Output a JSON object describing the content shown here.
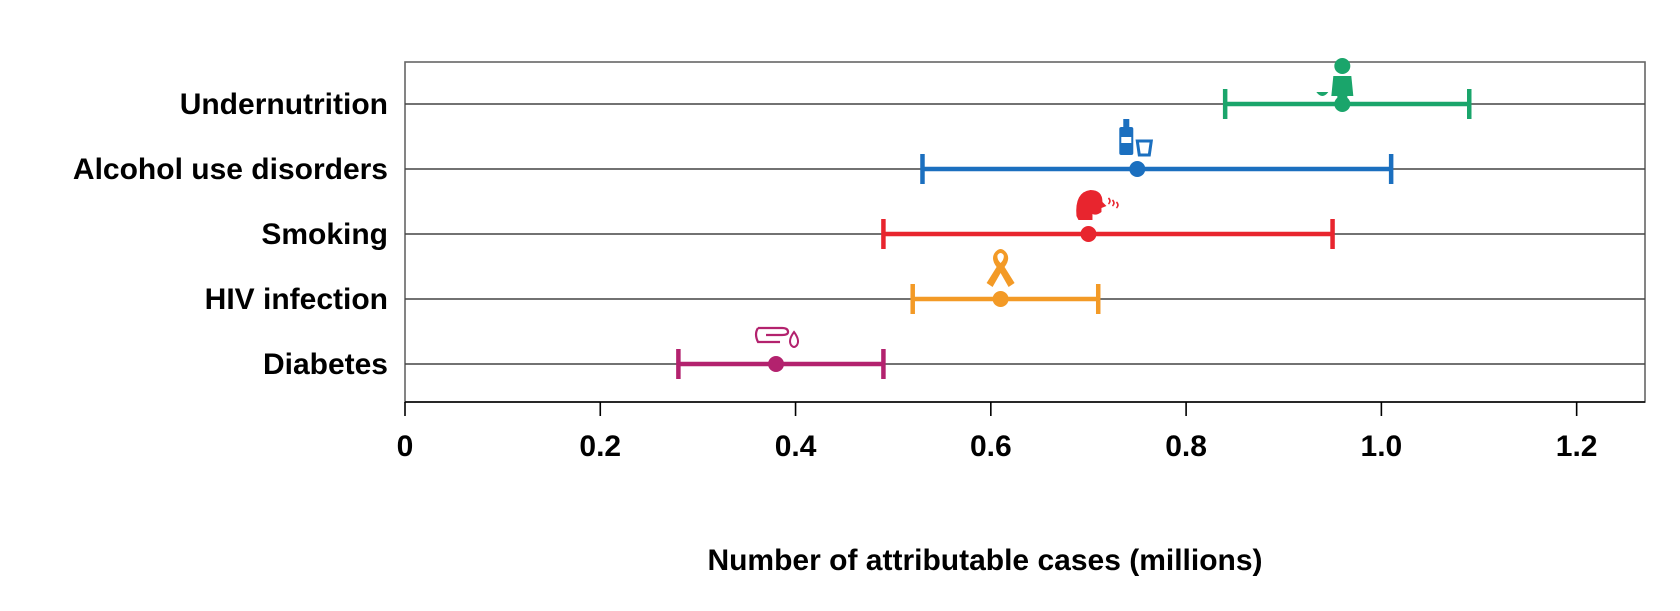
{
  "chart_data": {
    "type": "scatter",
    "title": "",
    "xlabel": "Number of attributable cases (millions)",
    "ylabel": "",
    "xlim": [
      0,
      1.27
    ],
    "xticks": [
      0,
      0.2,
      0.4,
      0.6,
      0.8,
      1.0,
      1.2
    ],
    "xtick_labels": [
      "0",
      "0.2",
      "0.4",
      "0.6",
      "0.8",
      "1.0",
      "1.2"
    ],
    "grid": "horizontal lines at each category",
    "categories": [
      "Undernutrition",
      "Alcohol use disorders",
      "Smoking",
      "HIV infection",
      "Diabetes"
    ],
    "series": [
      {
        "category": "Undernutrition",
        "value": 0.96,
        "lower": 0.84,
        "upper": 1.09,
        "color": "#1aa56b",
        "icon": "person-eating-icon"
      },
      {
        "category": "Alcohol use disorders",
        "value": 0.75,
        "lower": 0.53,
        "upper": 1.01,
        "color": "#1b6fbf",
        "icon": "bottle-glass-icon"
      },
      {
        "category": "Smoking",
        "value": 0.7,
        "lower": 0.49,
        "upper": 0.95,
        "color": "#e8252e",
        "icon": "smoking-head-icon"
      },
      {
        "category": "HIV infection",
        "value": 0.61,
        "lower": 0.52,
        "upper": 0.71,
        "color": "#f39a26",
        "icon": "awareness-ribbon-icon"
      },
      {
        "category": "Diabetes",
        "value": 0.38,
        "lower": 0.28,
        "upper": 0.49,
        "color": "#b3226e",
        "icon": "finger-blood-drop-icon"
      }
    ]
  }
}
